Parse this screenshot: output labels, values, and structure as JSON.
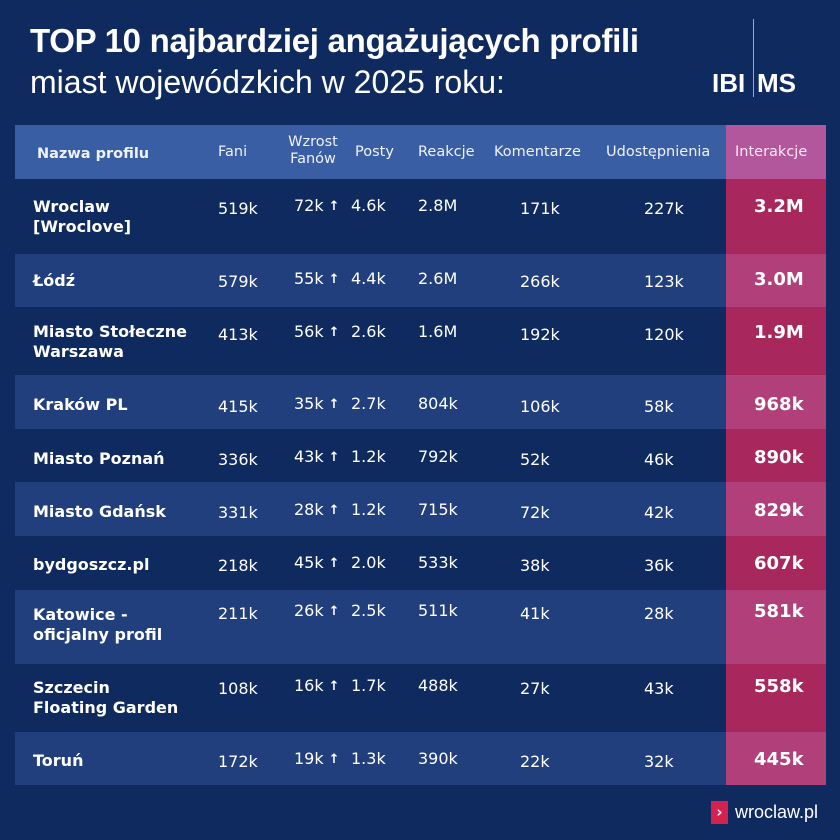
{
  "header": {
    "title_line1": "TOP 10 najbardziej angażujących profili",
    "title_line2": "miast wojewódzkich w 2025 roku:",
    "logo_left": "IBI",
    "logo_right": "MS"
  },
  "table": {
    "columns": {
      "name": "Nazwa profilu",
      "fans": "Fani",
      "growth_line1": "Wzrost",
      "growth_line2": "Fanów",
      "posts": "Posty",
      "reactions": "Reakcje",
      "comments": "Komentarze",
      "shares": "Udostępnienia",
      "interactions": "Interakcje"
    },
    "growth_icon": "arrow-up-icon",
    "rows": [
      {
        "name_line1": "Wroclaw",
        "name_line2": "[Wroclove]",
        "fans": "519k",
        "growth": "72k",
        "posts": "4.6k",
        "reactions": "2.8M",
        "comments": "171k",
        "shares": "227k",
        "interactions": "3.2M"
      },
      {
        "name_line1": "Łódź",
        "name_line2": "",
        "fans": "579k",
        "growth": "55k",
        "posts": "4.4k",
        "reactions": "2.6M",
        "comments": "266k",
        "shares": "123k",
        "interactions": "3.0M"
      },
      {
        "name_line1": "Miasto Stołeczne",
        "name_line2": "Warszawa",
        "fans": "413k",
        "growth": "56k",
        "posts": "2.6k",
        "reactions": "1.6M",
        "comments": "192k",
        "shares": "120k",
        "interactions": "1.9M"
      },
      {
        "name_line1": "Kraków PL",
        "name_line2": "",
        "fans": "415k",
        "growth": "35k",
        "posts": "2.7k",
        "reactions": "804k",
        "comments": "106k",
        "shares": "58k",
        "interactions": "968k"
      },
      {
        "name_line1": "Miasto Poznań",
        "name_line2": "",
        "fans": "336k",
        "growth": "43k",
        "posts": "1.2k",
        "reactions": "792k",
        "comments": "52k",
        "shares": "46k",
        "interactions": "890k"
      },
      {
        "name_line1": "Miasto Gdańsk",
        "name_line2": "",
        "fans": "331k",
        "growth": "28k",
        "posts": "1.2k",
        "reactions": "715k",
        "comments": "72k",
        "shares": "42k",
        "interactions": "829k"
      },
      {
        "name_line1": "bydgoszcz.pl",
        "name_line2": "",
        "fans": "218k",
        "growth": "45k",
        "posts": "2.0k",
        "reactions": "533k",
        "comments": "38k",
        "shares": "36k",
        "interactions": "607k"
      },
      {
        "name_line1": "Katowice -",
        "name_line2": "oficjalny profil",
        "fans": "211k",
        "growth": "26k",
        "posts": "2.5k",
        "reactions": "511k",
        "comments": "41k",
        "shares": "28k",
        "interactions": "581k"
      },
      {
        "name_line1": "Szczecin",
        "name_line2": "Floating Garden",
        "fans": "108k",
        "growth": "16k",
        "posts": "1.7k",
        "reactions": "488k",
        "comments": "27k",
        "shares": "43k",
        "interactions": "558k"
      },
      {
        "name_line1": "Toruń",
        "name_line2": "",
        "fans": "172k",
        "growth": "19k",
        "posts": "1.3k",
        "reactions": "390k",
        "comments": "22k",
        "shares": "32k",
        "interactions": "445k"
      }
    ]
  },
  "footer": {
    "icon": "chevron-right-icon",
    "icon_glyph": "›",
    "text": "wroclaw.pl"
  },
  "colors": {
    "background": "#0f2a5f",
    "header_row": "#3a5ea4",
    "alt_row": "#213f7c",
    "interactions_header": "#b2579c",
    "interactions_dark": "#a8275d",
    "interactions_light": "#b03f7a",
    "footer_icon": "#d5214f",
    "logo_divider": "#6fb6ea"
  }
}
